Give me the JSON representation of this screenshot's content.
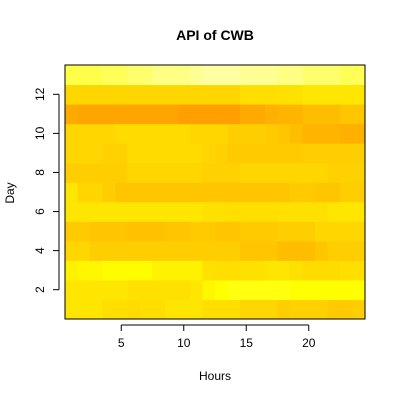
{
  "chart_data": {
    "type": "heatmap",
    "title": "API of CWB",
    "xlabel": "Hours",
    "ylabel": "Day",
    "x": [
      1,
      2,
      3,
      4,
      5,
      6,
      7,
      8,
      9,
      10,
      11,
      12,
      13,
      14,
      15,
      16,
      17,
      18,
      19,
      20,
      21,
      22,
      23,
      24
    ],
    "y": [
      1,
      2,
      3,
      4,
      5,
      6,
      7,
      8,
      9,
      10,
      11,
      12,
      13
    ],
    "xlim": [
      0.5,
      24.5
    ],
    "ylim": [
      0.5,
      13.5
    ],
    "x_ticks": [
      5,
      10,
      15,
      20
    ],
    "y_ticks": [
      2,
      4,
      6,
      8,
      10,
      12
    ],
    "color_scale": "heat (red = high, white = low)",
    "color_range": [
      "#FF8C00",
      "#FFF8DC"
    ],
    "z": [
      [
        0.55,
        0.55,
        0.55,
        0.5,
        0.5,
        0.48,
        0.5,
        0.5,
        0.55,
        0.55,
        0.55,
        0.5,
        0.5,
        0.5,
        0.45,
        0.45,
        0.45,
        0.4,
        0.42,
        0.42,
        0.42,
        0.38,
        0.38,
        0.4
      ],
      [
        0.55,
        0.55,
        0.55,
        0.55,
        0.55,
        0.52,
        0.52,
        0.52,
        0.52,
        0.52,
        0.55,
        0.65,
        0.7,
        0.72,
        0.72,
        0.72,
        0.72,
        0.72,
        0.7,
        0.7,
        0.7,
        0.7,
        0.7,
        0.7
      ],
      [
        0.62,
        0.65,
        0.65,
        0.68,
        0.68,
        0.68,
        0.68,
        0.62,
        0.62,
        0.62,
        0.62,
        0.52,
        0.5,
        0.5,
        0.52,
        0.52,
        0.55,
        0.55,
        0.52,
        0.48,
        0.48,
        0.48,
        0.5,
        0.5
      ],
      [
        0.45,
        0.45,
        0.4,
        0.4,
        0.4,
        0.4,
        0.4,
        0.4,
        0.4,
        0.4,
        0.4,
        0.4,
        0.4,
        0.4,
        0.35,
        0.35,
        0.35,
        0.3,
        0.3,
        0.3,
        0.35,
        0.4,
        0.4,
        0.4
      ],
      [
        0.38,
        0.38,
        0.35,
        0.35,
        0.35,
        0.32,
        0.32,
        0.32,
        0.35,
        0.35,
        0.38,
        0.38,
        0.35,
        0.35,
        0.38,
        0.38,
        0.38,
        0.4,
        0.4,
        0.4,
        0.45,
        0.45,
        0.45,
        0.45
      ],
      [
        0.55,
        0.55,
        0.55,
        0.55,
        0.55,
        0.55,
        0.55,
        0.55,
        0.55,
        0.55,
        0.55,
        0.52,
        0.52,
        0.5,
        0.5,
        0.5,
        0.5,
        0.52,
        0.52,
        0.52,
        0.52,
        0.55,
        0.55,
        0.55
      ],
      [
        0.55,
        0.45,
        0.45,
        0.4,
        0.35,
        0.35,
        0.35,
        0.35,
        0.35,
        0.35,
        0.35,
        0.35,
        0.35,
        0.35,
        0.35,
        0.35,
        0.35,
        0.35,
        0.38,
        0.38,
        0.35,
        0.35,
        0.4,
        0.4
      ],
      [
        0.4,
        0.4,
        0.4,
        0.4,
        0.4,
        0.45,
        0.45,
        0.45,
        0.45,
        0.45,
        0.45,
        0.42,
        0.42,
        0.42,
        0.45,
        0.45,
        0.45,
        0.45,
        0.45,
        0.45,
        0.45,
        0.42,
        0.42,
        0.42
      ],
      [
        0.45,
        0.45,
        0.45,
        0.42,
        0.42,
        0.48,
        0.48,
        0.48,
        0.48,
        0.48,
        0.48,
        0.45,
        0.42,
        0.38,
        0.38,
        0.38,
        0.38,
        0.38,
        0.38,
        0.4,
        0.4,
        0.4,
        0.4,
        0.4
      ],
      [
        0.45,
        0.45,
        0.45,
        0.45,
        0.48,
        0.48,
        0.48,
        0.48,
        0.48,
        0.48,
        0.45,
        0.45,
        0.45,
        0.4,
        0.4,
        0.4,
        0.38,
        0.35,
        0.3,
        0.25,
        0.25,
        0.25,
        0.22,
        0.22
      ],
      [
        0.18,
        0.15,
        0.15,
        0.15,
        0.15,
        0.15,
        0.15,
        0.15,
        0.15,
        0.12,
        0.12,
        0.12,
        0.12,
        0.12,
        0.18,
        0.18,
        0.22,
        0.25,
        0.25,
        0.3,
        0.3,
        0.3,
        0.35,
        0.35
      ],
      [
        0.45,
        0.45,
        0.45,
        0.45,
        0.45,
        0.45,
        0.45,
        0.45,
        0.45,
        0.45,
        0.45,
        0.45,
        0.45,
        0.45,
        0.5,
        0.5,
        0.5,
        0.52,
        0.52,
        0.55,
        0.55,
        0.55,
        0.55,
        0.55
      ],
      [
        0.8,
        0.8,
        0.8,
        0.82,
        0.82,
        0.85,
        0.85,
        0.88,
        0.88,
        0.88,
        0.9,
        0.92,
        0.92,
        0.92,
        0.9,
        0.9,
        0.9,
        0.88,
        0.88,
        0.85,
        0.85,
        0.85,
        0.82,
        0.82
      ]
    ]
  }
}
